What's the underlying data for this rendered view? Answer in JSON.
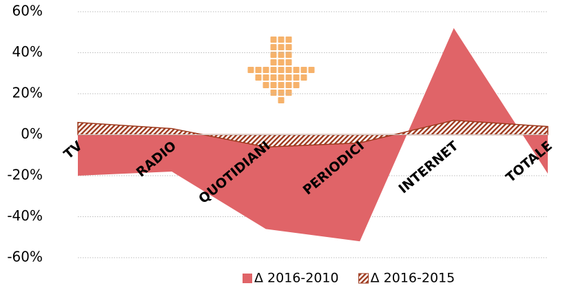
{
  "chart_data": {
    "type": "area",
    "categories": [
      "TV",
      "RADIO",
      "QUOTIDIANI",
      "PERIODICI",
      "INTERNET",
      "TOTALE"
    ],
    "series": [
      {
        "name": "Δ 2016-2010",
        "color": "#e06468",
        "values": [
          -20,
          -18,
          -46,
          -52,
          52,
          -19
        ]
      },
      {
        "name": "Δ 2016-2015",
        "color": "#9e3a1e",
        "values": [
          6,
          3,
          -6,
          -4,
          7,
          4
        ]
      }
    ],
    "ylim": [
      -60,
      60
    ],
    "yticks": [
      {
        "value": -60,
        "label": "-60%"
      },
      {
        "value": -40,
        "label": "-40%"
      },
      {
        "value": -20,
        "label": "-20%"
      },
      {
        "value": 0,
        "label": "0%"
      },
      {
        "value": 20,
        "label": "20%"
      },
      {
        "value": 40,
        "label": "40%"
      },
      {
        "value": 60,
        "label": "60%"
      }
    ],
    "grid": true,
    "legend": "bottom"
  }
}
